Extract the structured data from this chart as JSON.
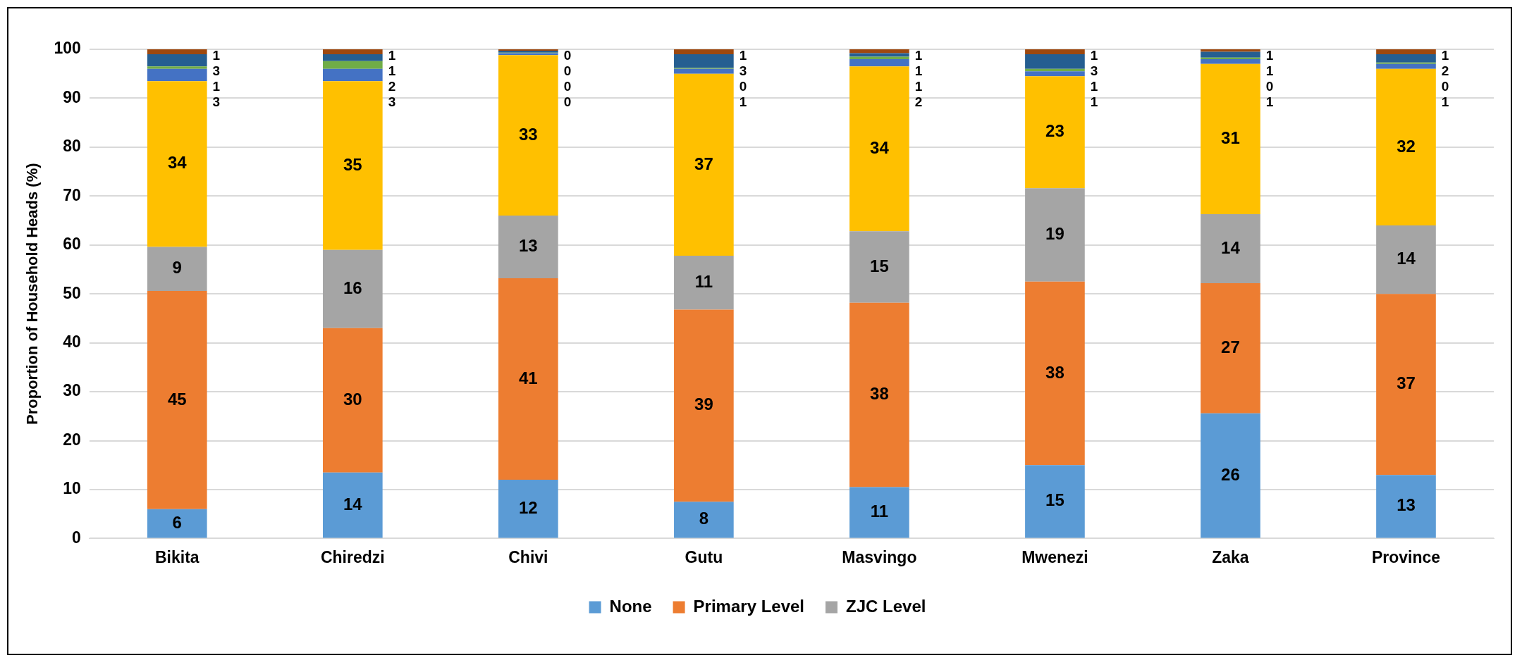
{
  "chart_data": {
    "type": "bar",
    "stacked": true,
    "ylabel": "Proportion of Household Heads (%)",
    "categories": [
      "Bikita",
      "Chiredzi",
      "Chivi",
      "Gutu",
      "Masvingo",
      "Mwenezi",
      "Zaka",
      "Province"
    ],
    "ylim": [
      0,
      100
    ],
    "yticks": [
      0,
      10,
      20,
      30,
      40,
      50,
      60,
      70,
      80,
      90,
      100
    ],
    "grid": "y",
    "legend": "bottom",
    "series": [
      {
        "name": "None",
        "color": "#5b9bd5",
        "values": [
          6,
          13.5,
          12,
          7.5,
          10.5,
          15,
          25.6,
          13
        ],
        "value_labels": [
          "6",
          "14",
          "12",
          "8",
          "11",
          "15",
          "26",
          "13"
        ]
      },
      {
        "name": "Primary Level",
        "color": "#ed7d31",
        "values": [
          44.6,
          29.5,
          41.2,
          39.3,
          37.7,
          37.5,
          26.6,
          37
        ],
        "value_labels": [
          "45",
          "30",
          "41",
          "39",
          "38",
          "38",
          "27",
          "37"
        ]
      },
      {
        "name": "ZJC Level",
        "color": "#a5a5a5",
        "values": [
          9,
          16,
          12.8,
          11,
          14.6,
          19.1,
          14.1,
          14
        ],
        "value_labels": [
          "9",
          "16",
          "13",
          "11",
          "15",
          "19",
          "14",
          "14"
        ]
      },
      {
        "color": "#ffc000",
        "values": [
          33.9,
          34.5,
          32.8,
          37.2,
          33.7,
          22.9,
          30.7,
          32
        ],
        "value_labels": [
          "34",
          "35",
          "33",
          "37",
          "34",
          "23",
          "31",
          "32"
        ]
      },
      {
        "color": "#4472c4",
        "values": [
          2.5,
          2.5,
          0.4,
          1,
          1.5,
          1,
          1,
          1
        ],
        "value_labels": [
          "3",
          "3",
          "0",
          "1",
          "2",
          "1",
          "1",
          "1"
        ]
      },
      {
        "color": "#70ad47",
        "values": [
          0.5,
          1.6,
          0.1,
          0.2,
          0.5,
          0.5,
          0.3,
          0.3
        ],
        "value_labels": [
          "1",
          "2",
          "0",
          "0",
          "1",
          "1",
          "0",
          "0"
        ]
      },
      {
        "color": "#255e91",
        "values": [
          2.5,
          1.4,
          0.4,
          2.8,
          0.7,
          3,
          1.2,
          1.7
        ],
        "value_labels": [
          "3",
          "1",
          "0",
          "3",
          "1",
          "3",
          "1",
          "2"
        ]
      },
      {
        "color": "#9e480e",
        "values": [
          1,
          1,
          0.3,
          1,
          0.8,
          1,
          0.5,
          1
        ],
        "value_labels": [
          "1",
          "1",
          "0",
          "1",
          "1",
          "1",
          "1",
          "1"
        ]
      }
    ]
  }
}
